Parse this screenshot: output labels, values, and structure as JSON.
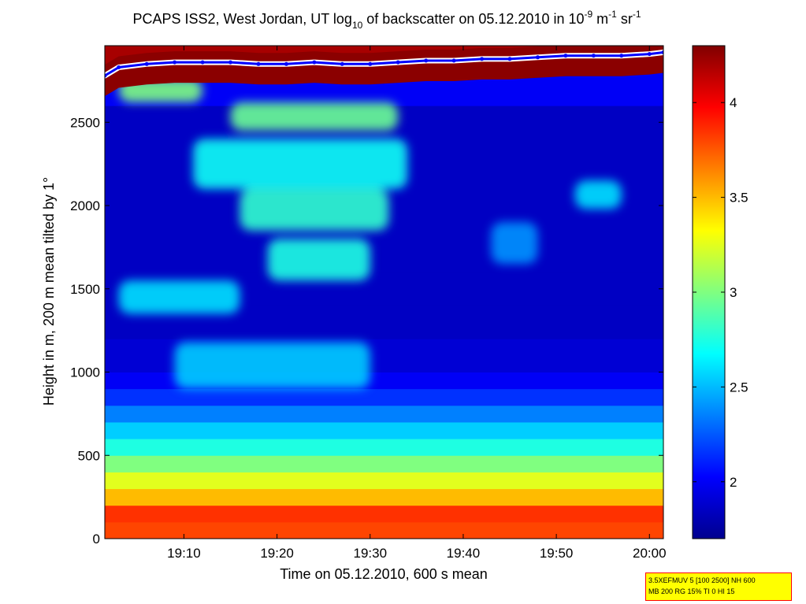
{
  "chart_data": [
    {
      "type": "heatmap",
      "title_parts": {
        "before_log": "PCAPS ISS2, West Jordan, UT log",
        "log_sub": "10",
        "mid": " of backscatter on 05.12.2010 in 10",
        "exp1": "-9",
        "unit_m": " m",
        "exp2": "-1",
        "unit_sr": " sr",
        "exp3": "-1"
      },
      "xlabel": "Time on 05.12.2010, 600 s mean",
      "ylabel": "Height in m, 200 m mean tilted by 1°",
      "x_range": [
        "19:01:30",
        "20:01:30"
      ],
      "ylim": [
        0,
        2960
      ],
      "x_ticks": [
        {
          "time": "19:10",
          "label": "19:10"
        },
        {
          "time": "19:20",
          "label": "19:20"
        },
        {
          "time": "19:30",
          "label": "19:30"
        },
        {
          "time": "19:40",
          "label": "19:40"
        },
        {
          "time": "19:50",
          "label": "19:50"
        },
        {
          "time": "20:00",
          "label": "20:00"
        }
      ],
      "y_ticks": [
        {
          "value": 0,
          "label": "0"
        },
        {
          "value": 500,
          "label": "500"
        },
        {
          "value": 1000,
          "label": "1000"
        },
        {
          "value": 1500,
          "label": "1500"
        },
        {
          "value": 2000,
          "label": "2000"
        },
        {
          "value": 2500,
          "label": "2500"
        }
      ],
      "colorbar": {
        "range": [
          1.7,
          4.3
        ],
        "ticks": [
          {
            "value": 2,
            "label": "2"
          },
          {
            "value": 2.5,
            "label": "2.5"
          },
          {
            "value": 3,
            "label": "3"
          },
          {
            "value": 3.5,
            "label": "3.5"
          },
          {
            "value": 4,
            "label": "4"
          }
        ]
      },
      "colormap": [
        "#00008f",
        "#0000ff",
        "#0080ff",
        "#00ffff",
        "#80ff80",
        "#ffff00",
        "#ff8000",
        "#ff0000",
        "#800000"
      ],
      "height_levels": [
        0,
        100,
        200,
        300,
        400,
        500,
        600,
        700,
        800,
        900,
        1000,
        1200,
        1400,
        1600,
        1800,
        2000,
        2200,
        2400,
        2600,
        2800,
        2960
      ],
      "profile_log10_backscatter": [
        3.8,
        3.85,
        3.5,
        3.25,
        3.0,
        2.75,
        2.55,
        2.35,
        2.15,
        2.0,
        1.9,
        1.85,
        1.85,
        1.85,
        1.85,
        1.85,
        1.85,
        1.85,
        2.0,
        4.2,
        1.8
      ],
      "aerosol_layers": [
        {
          "t_start": "19:03",
          "t_end": "19:12",
          "h_min": 2620,
          "h_max": 2760,
          "value": 3.0
        },
        {
          "t_start": "19:15",
          "t_end": "19:33",
          "h_min": 2450,
          "h_max": 2620,
          "value": 2.95
        },
        {
          "t_start": "19:11",
          "t_end": "19:34",
          "h_min": 2100,
          "h_max": 2400,
          "value": 2.7
        },
        {
          "t_start": "19:16",
          "t_end": "19:32",
          "h_min": 1850,
          "h_max": 2100,
          "value": 2.8
        },
        {
          "t_start": "19:19",
          "t_end": "19:30",
          "h_min": 1550,
          "h_max": 1800,
          "value": 2.75
        },
        {
          "t_start": "19:03",
          "t_end": "19:16",
          "h_min": 1350,
          "h_max": 1550,
          "value": 2.6
        },
        {
          "t_start": "19:09",
          "t_end": "19:30",
          "h_min": 900,
          "h_max": 1180,
          "value": 2.55
        },
        {
          "t_start": "19:52",
          "t_end": "19:57",
          "h_min": 1980,
          "h_max": 2150,
          "value": 2.6
        },
        {
          "t_start": "19:43",
          "t_end": "19:48",
          "h_min": 1650,
          "h_max": 1900,
          "value": 2.4
        }
      ],
      "cloud_base_height": {
        "times": [
          "19:01:30",
          "19:03",
          "19:06",
          "19:09",
          "19:12",
          "19:15",
          "19:18",
          "19:21",
          "19:24",
          "19:27",
          "19:30",
          "19:33",
          "19:36",
          "19:39",
          "19:42",
          "19:45",
          "19:48",
          "19:51",
          "19:54",
          "19:57",
          "20:00",
          "20:01:30"
        ],
        "heights": [
          2780,
          2830,
          2850,
          2860,
          2860,
          2860,
          2850,
          2850,
          2860,
          2850,
          2850,
          2860,
          2870,
          2870,
          2880,
          2880,
          2890,
          2900,
          2900,
          2900,
          2910,
          2920
        ],
        "line_color": "#0000ff",
        "marker_color": "#ffffff",
        "band_color": "#8b0000"
      }
    }
  ],
  "info_box": {
    "line1": "3.5XEFMUV 5 [100 2500] NH 600",
    "line2": "MB 200 RG 15% TI 0 HI 15"
  }
}
